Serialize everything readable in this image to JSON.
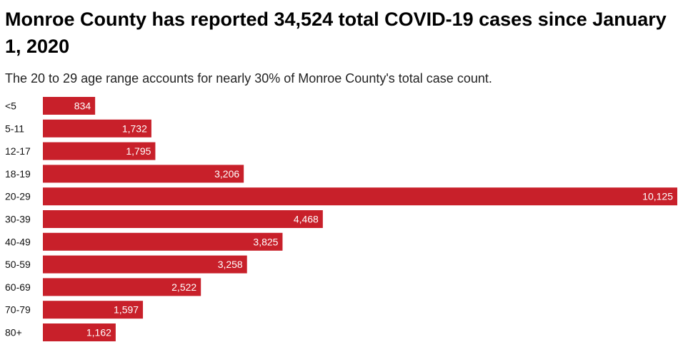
{
  "chart_data": {
    "type": "bar",
    "orientation": "horizontal",
    "title": "Monroe County has reported 34,524 total COVID-19 cases since January 1, 2020",
    "subtitle": "The 20 to 29 age range accounts for nearly 30% of Monroe County's total case count.",
    "categories": [
      "<5",
      "5-11",
      "12-17",
      "18-19",
      "20-29",
      "30-39",
      "40-49",
      "50-59",
      "60-69",
      "70-79",
      "80+"
    ],
    "values": [
      834,
      1732,
      1795,
      3206,
      10125,
      4468,
      3825,
      3258,
      2522,
      1597,
      1162
    ],
    "value_labels": [
      "834",
      "1,732",
      "1,795",
      "3,206",
      "10,125",
      "4,468",
      "3,825",
      "3,258",
      "2,522",
      "1,597",
      "1,162"
    ],
    "xlim": [
      0,
      10125
    ],
    "grid": false,
    "bar_color": "#c8202a"
  }
}
